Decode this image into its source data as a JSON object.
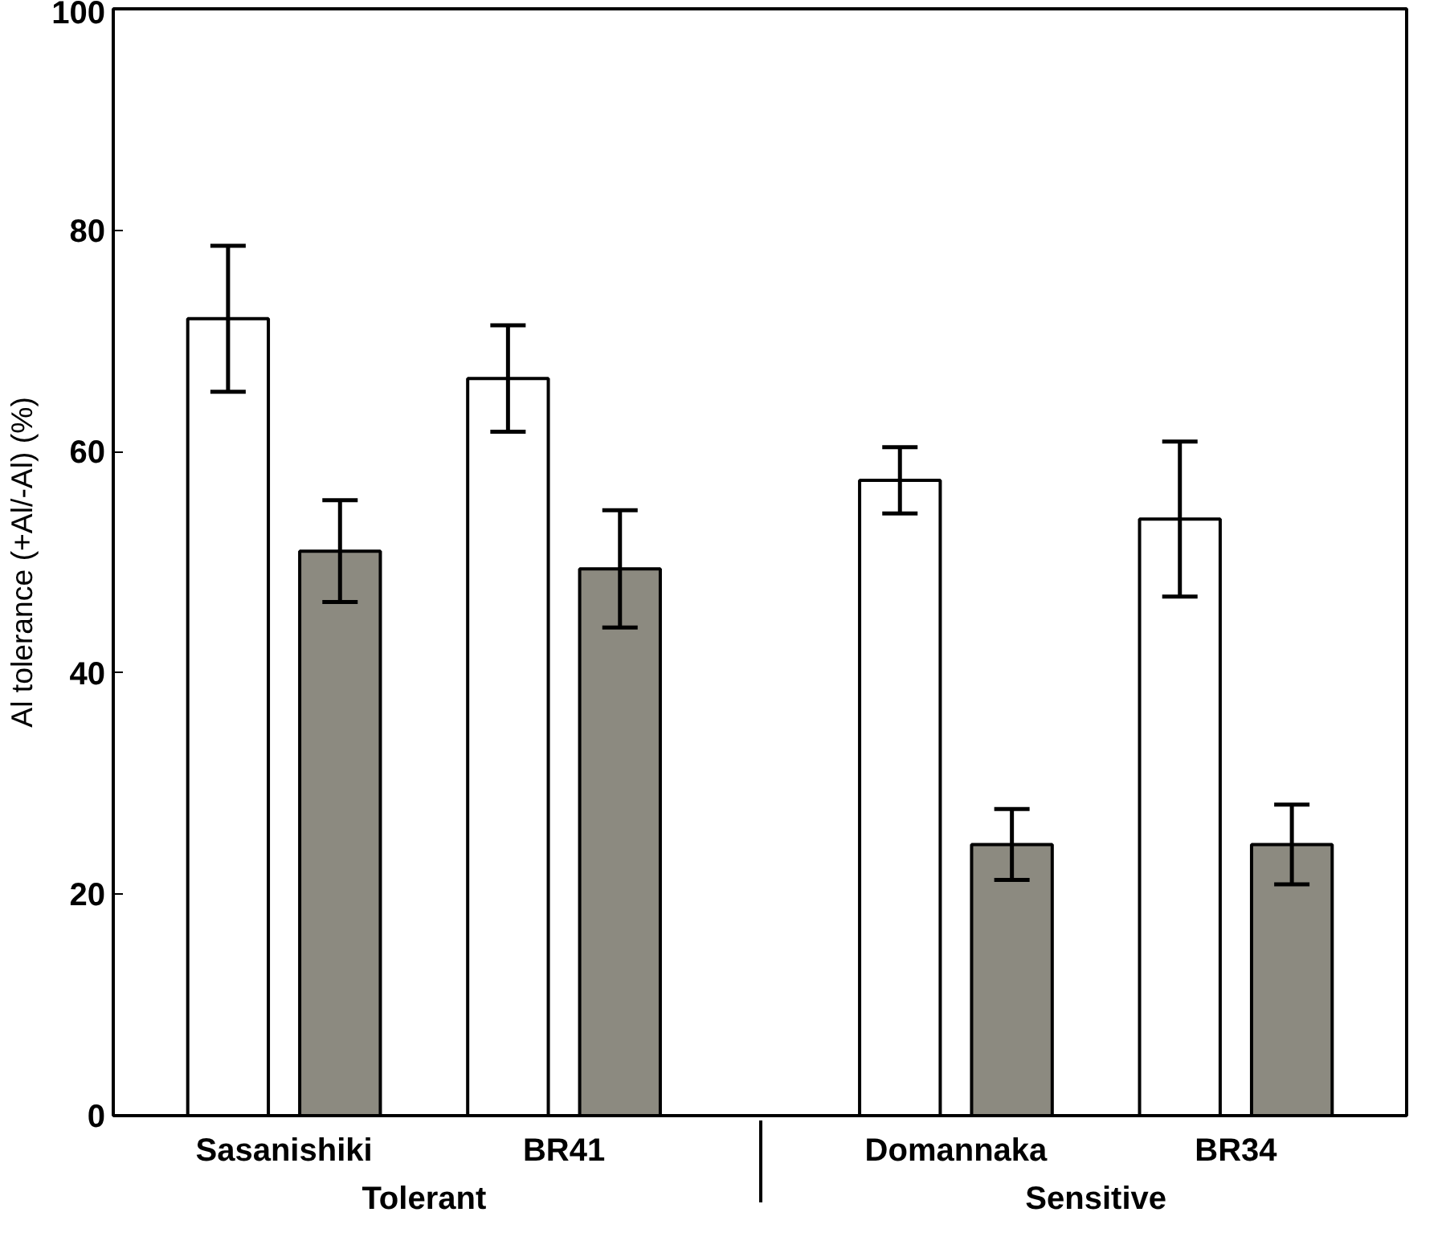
{
  "chart_data": {
    "type": "bar",
    "ylabel": "Al tolerance (+Al/-Al) (%)",
    "categories": [
      "Sasanishiki",
      "BR41",
      "Domannaka",
      "BR34"
    ],
    "annotations": [
      "Tolerant",
      "Sensitive"
    ],
    "series": [
      {
        "color": "#ffffff",
        "values": [
          72,
          66.6,
          57.4,
          53.9
        ],
        "errors": [
          6.6,
          4.8,
          3,
          7
        ]
      },
      {
        "color": "#8c8a80",
        "values": [
          51,
          49.4,
          24.5,
          24.5
        ],
        "errors": [
          4.6,
          5.3,
          3.2,
          3.6
        ]
      }
    ],
    "ylim": [
      0,
      100
    ],
    "yticks": [
      0,
      20,
      40,
      60,
      80,
      100
    ],
    "grid": false
  }
}
